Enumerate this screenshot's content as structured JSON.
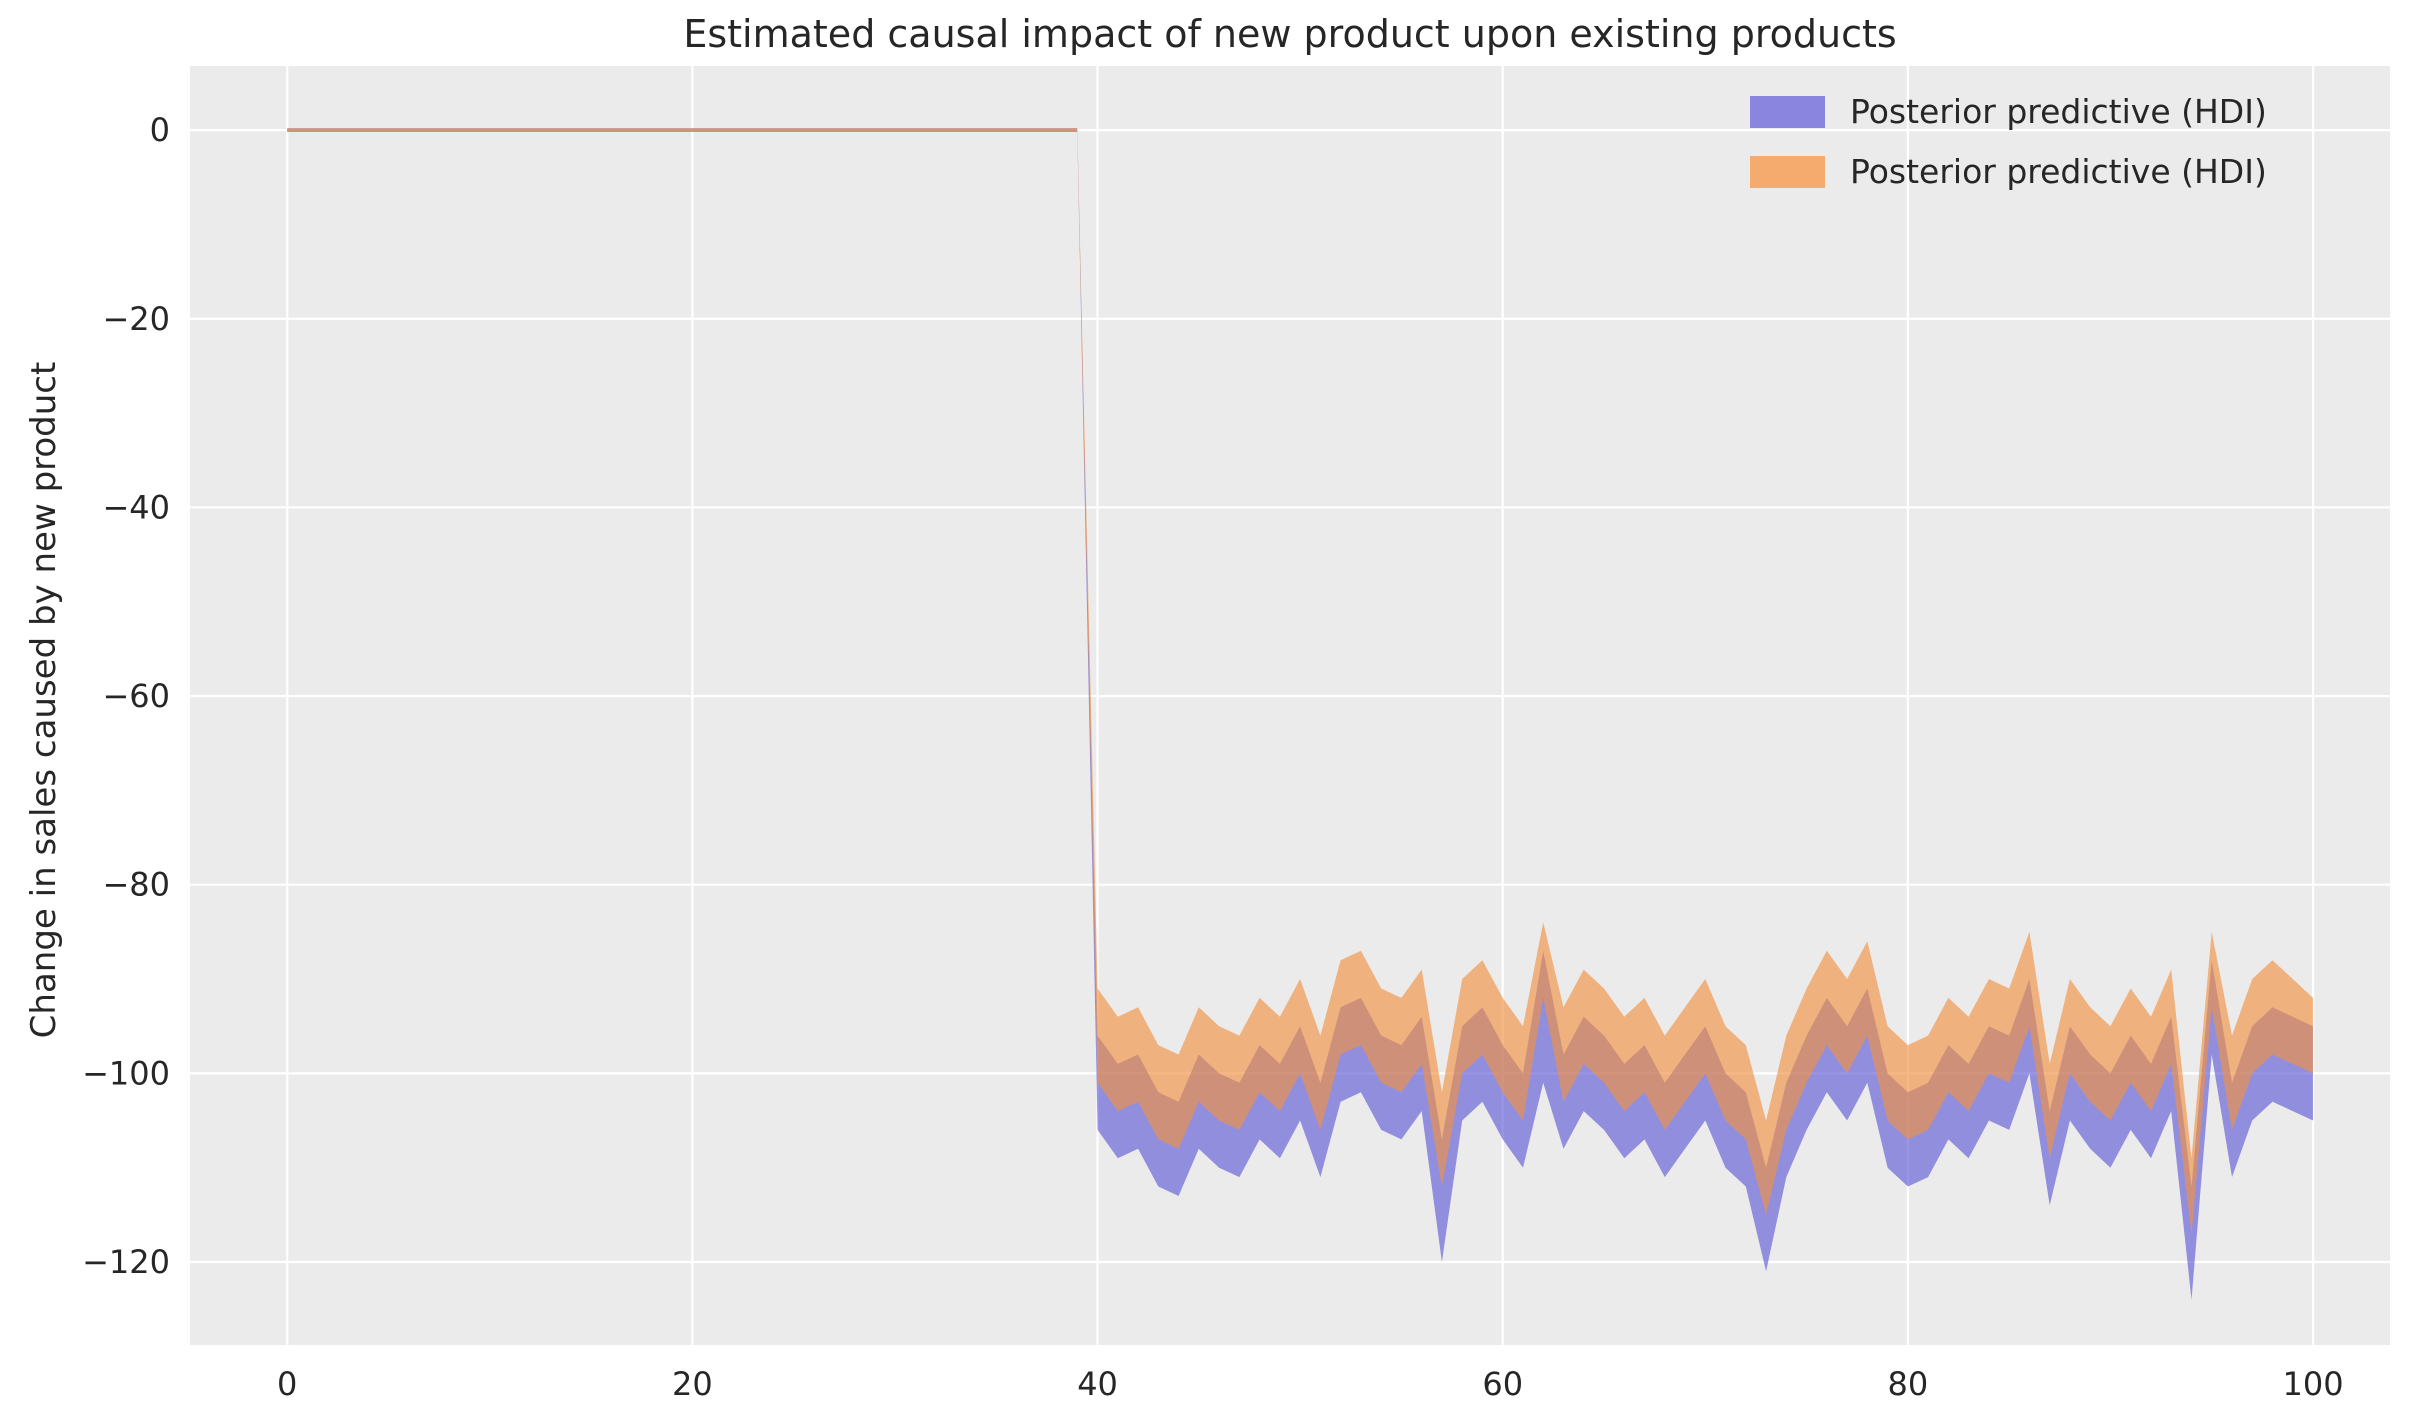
{
  "colors": {
    "figure_bg": "#ffffff",
    "axes_bg": "#ebebeb",
    "grid": "#ffffff",
    "text": "#262626",
    "blue_band": "#5a55d6",
    "blue_band_opacity": 0.62,
    "orange_band": "#f19244",
    "orange_band_opacity": 0.65
  },
  "chart_data": {
    "type": "area",
    "title": "Estimated causal impact of new product upon existing products",
    "xlabel": "",
    "ylabel": "Change in sales caused by new product",
    "xlim": [
      -4.8,
      103.8
    ],
    "ylim": [
      -128.8,
      6.8
    ],
    "grid": "on",
    "legend_position": "upper right",
    "xticks": {
      "values": [
        0,
        20,
        40,
        60,
        80,
        100
      ],
      "labels": [
        "0",
        "20",
        "40",
        "60",
        "80",
        "100"
      ]
    },
    "yticks": {
      "values": [
        0,
        -20,
        -40,
        -60,
        -80,
        -100,
        -120
      ],
      "labels": [
        "0",
        "−20",
        "−40",
        "−60",
        "−80",
        "−100",
        "−120"
      ]
    },
    "legend": {
      "entries": [
        {
          "label": "Posterior predictive (HDI)",
          "swatch": "#8a86e0"
        },
        {
          "label": "Posterior predictive (HDI)",
          "swatch": "#f6ab6e"
        }
      ]
    },
    "series": [
      {
        "name": "Posterior predictive (HDI)",
        "kind": "band",
        "color": "#5a55d6",
        "opacity": 0.62,
        "x": [
          0,
          39,
          40,
          41,
          42,
          43,
          44,
          45,
          46,
          47,
          48,
          49,
          50,
          51,
          52,
          53,
          54,
          55,
          56,
          57,
          58,
          59,
          60,
          61,
          62,
          63,
          64,
          65,
          66,
          67,
          68,
          69,
          70,
          71,
          72,
          73,
          74,
          75,
          76,
          77,
          78,
          79,
          80,
          81,
          82,
          83,
          84,
          85,
          86,
          87,
          88,
          89,
          90,
          91,
          92,
          93,
          94,
          95,
          96,
          97,
          98,
          99,
          100
        ],
        "lower": [
          -0.2,
          -0.2,
          -106,
          -109,
          -108,
          -112,
          -113,
          -108,
          -110,
          -111,
          -107,
          -109,
          -105,
          -111,
          -103,
          -102,
          -106,
          -107,
          -104,
          -120,
          -105,
          -103,
          -107,
          -110,
          -101,
          -108,
          -104,
          -106,
          -109,
          -107,
          -111,
          -108,
          -105,
          -110,
          -112,
          -121,
          -111,
          -106,
          -102,
          -105,
          -101,
          -110,
          -112,
          -111,
          -107,
          -109,
          -105,
          -106,
          -100,
          -114,
          -105,
          -108,
          -110,
          -106,
          -109,
          -104,
          -124,
          -98,
          -111,
          -105,
          -103,
          -104,
          -105
        ],
        "upper": [
          0.2,
          0.2,
          -96,
          -99,
          -98,
          -102,
          -103,
          -98,
          -100,
          -101,
          -97,
          -99,
          -95,
          -101,
          -93,
          -92,
          -96,
          -97,
          -94,
          -107,
          -95,
          -93,
          -97,
          -100,
          -87,
          -98,
          -94,
          -96,
          -99,
          -97,
          -101,
          -98,
          -95,
          -100,
          -102,
          -110,
          -101,
          -96,
          -92,
          -95,
          -91,
          -100,
          -102,
          -101,
          -97,
          -99,
          -95,
          -96,
          -90,
          -104,
          -95,
          -98,
          -100,
          -96,
          -99,
          -94,
          -112,
          -88,
          -101,
          -95,
          -93,
          -94,
          -95
        ]
      },
      {
        "name": "Posterior predictive (HDI)",
        "kind": "band",
        "color": "#f19244",
        "opacity": 0.65,
        "x": [
          0,
          39,
          40,
          41,
          42,
          43,
          44,
          45,
          46,
          47,
          48,
          49,
          50,
          51,
          52,
          53,
          54,
          55,
          56,
          57,
          58,
          59,
          60,
          61,
          62,
          63,
          64,
          65,
          66,
          67,
          68,
          69,
          70,
          71,
          72,
          73,
          74,
          75,
          76,
          77,
          78,
          79,
          80,
          81,
          82,
          83,
          84,
          85,
          86,
          87,
          88,
          89,
          90,
          91,
          92,
          93,
          94,
          95,
          96,
          97,
          98,
          99,
          100
        ],
        "lower": [
          -0.2,
          -0.2,
          -101,
          -104,
          -103,
          -107,
          -108,
          -103,
          -105,
          -106,
          -102,
          -104,
          -100,
          -106,
          -98,
          -97,
          -101,
          -102,
          -99,
          -112,
          -100,
          -98,
          -102,
          -105,
          -92,
          -103,
          -99,
          -101,
          -104,
          -102,
          -106,
          -103,
          -100,
          -105,
          -107,
          -115,
          -106,
          -101,
          -97,
          -100,
          -96,
          -105,
          -107,
          -106,
          -102,
          -104,
          -100,
          -101,
          -95,
          -109,
          -100,
          -103,
          -105,
          -101,
          -104,
          -99,
          -117,
          -93,
          -106,
          -100,
          -98,
          -99,
          -100
        ],
        "upper": [
          0.2,
          0.2,
          -91,
          -94,
          -93,
          -97,
          -98,
          -93,
          -95,
          -96,
          -92,
          -94,
          -90,
          -96,
          -88,
          -87,
          -91,
          -92,
          -89,
          -102,
          -90,
          -88,
          -92,
          -95,
          -84,
          -93,
          -89,
          -91,
          -94,
          -92,
          -96,
          -93,
          -90,
          -95,
          -97,
          -105,
          -96,
          -91,
          -87,
          -90,
          -86,
          -95,
          -97,
          -96,
          -92,
          -94,
          -90,
          -91,
          -85,
          -99,
          -90,
          -93,
          -95,
          -91,
          -94,
          -89,
          -109,
          -85,
          -96,
          -90,
          -88,
          -90,
          -92
        ]
      }
    ]
  }
}
